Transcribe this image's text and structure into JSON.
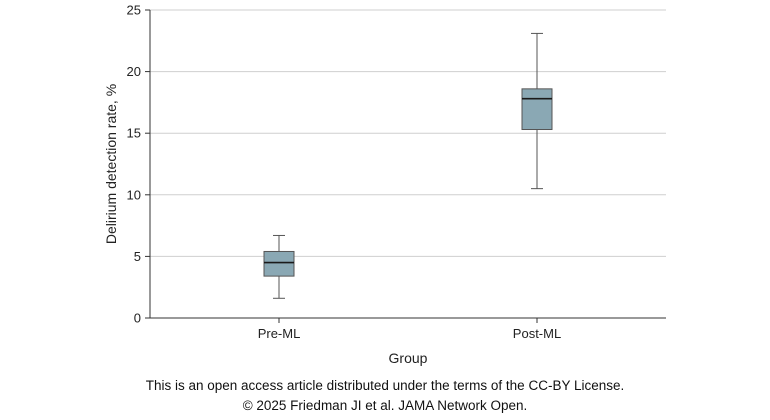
{
  "chart_data": {
    "type": "box",
    "xlabel": "Group",
    "ylabel": "Delirium detection rate, %",
    "ylim": [
      0,
      25
    ],
    "yticks": [
      0,
      5,
      10,
      15,
      20,
      25
    ],
    "grid": "horizontal",
    "categories": [
      "Pre-ML",
      "Post-ML"
    ],
    "boxes": [
      {
        "category": "Pre-ML",
        "min": 1.6,
        "q1": 3.4,
        "median": 4.5,
        "q3": 5.4,
        "max": 6.7
      },
      {
        "category": "Post-ML",
        "min": 10.5,
        "q1": 15.3,
        "median": 17.8,
        "q3": 18.6,
        "max": 23.1
      }
    ],
    "box_color": "#8aa8b4"
  },
  "footer": {
    "line1": "This is an open access article distributed under the terms of the CC-BY License.",
    "line2": "© 2025 Friedman JI et al. JAMA Network Open."
  }
}
